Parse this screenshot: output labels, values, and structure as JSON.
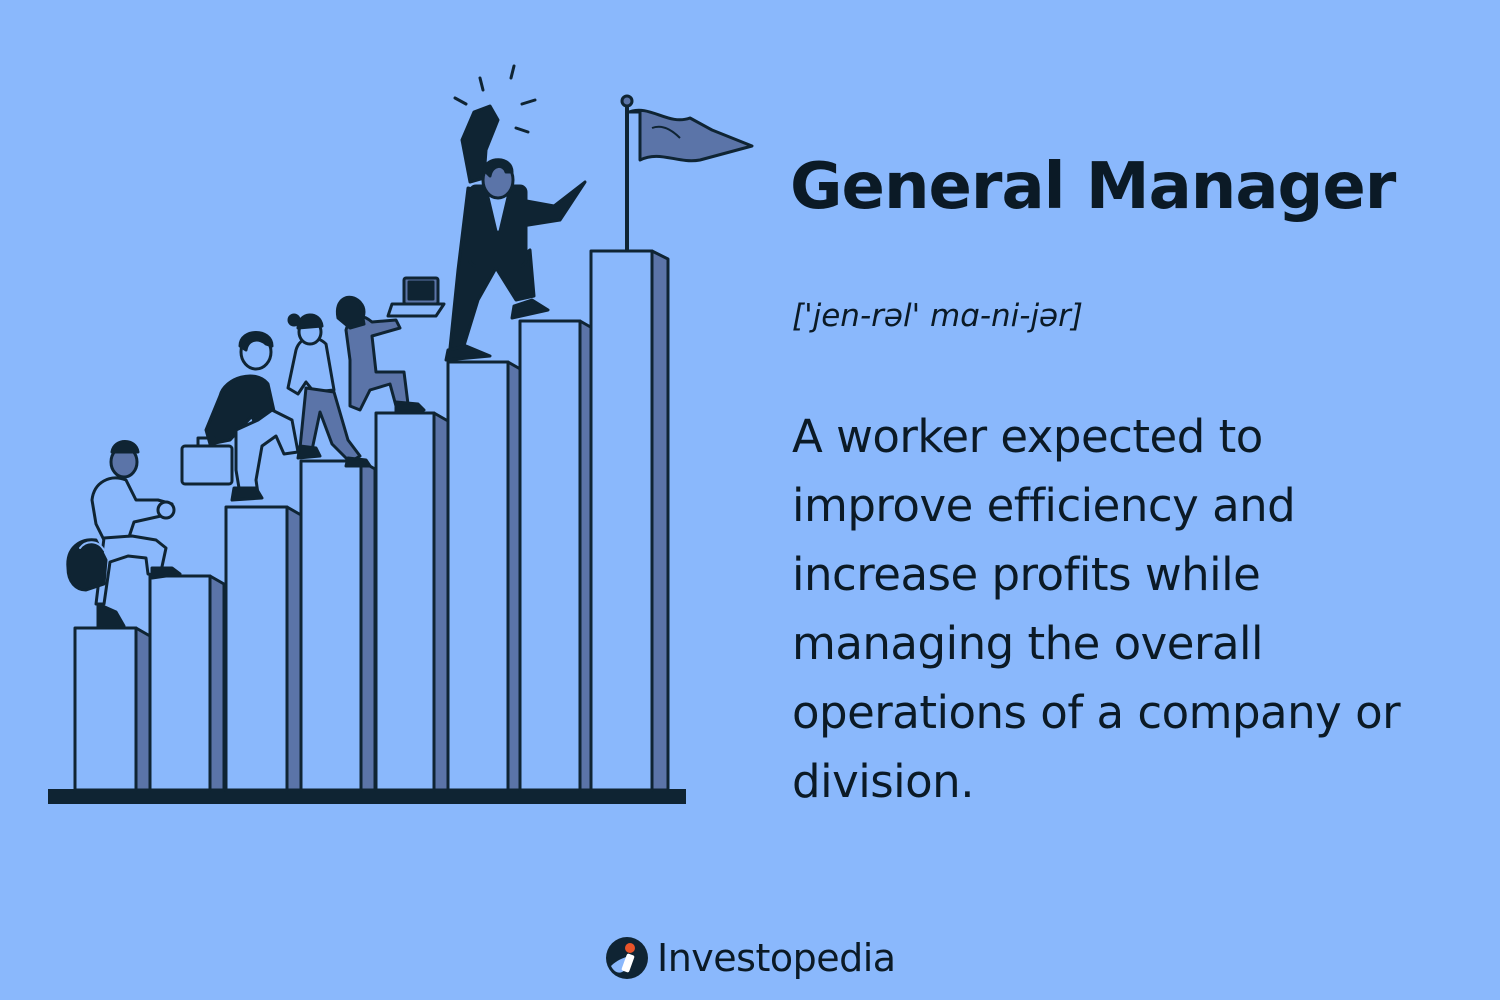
{
  "header": {
    "title": "General Manager",
    "pronunciation": "['jen-rəl' mɑ-ni-jər]"
  },
  "definition": {
    "text": "A worker expected to improve efficiency and increase profits while managing the overall operations of a company or division."
  },
  "branding": {
    "name": "Investopedia",
    "logo_icon": "investopedia-logo-icon"
  },
  "illustration": {
    "subject": "people-climbing-bar-steps-to-flag",
    "icon": "flag-icon"
  },
  "colors": {
    "background": "#8ab8fc",
    "ink": "#0b1a26",
    "bar_front": "#8ab8fc",
    "bar_side": "#5b74a8",
    "accent": "#e8542a"
  }
}
